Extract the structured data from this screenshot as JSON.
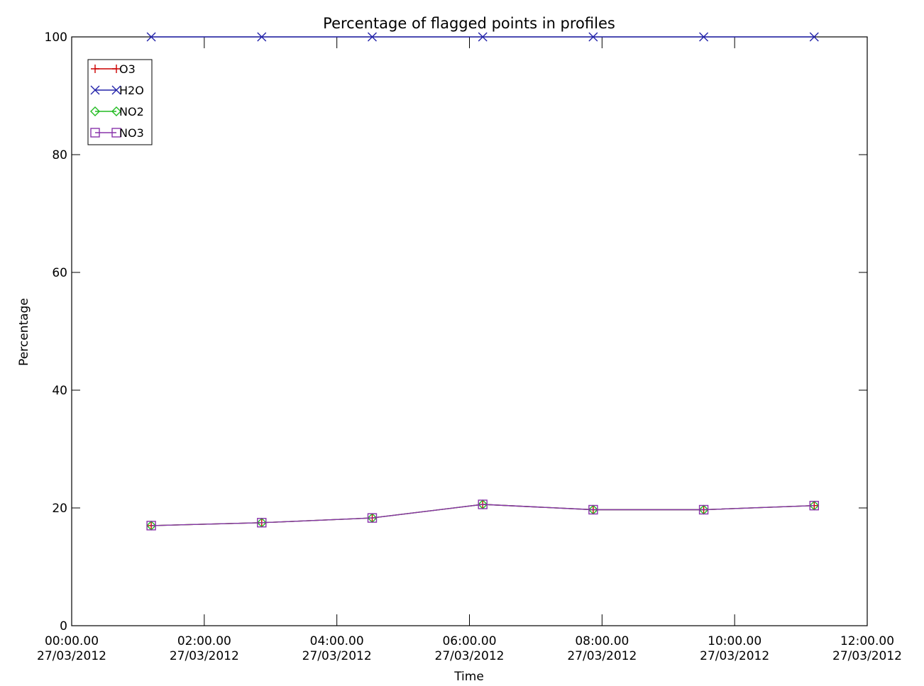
{
  "chart_data": {
    "type": "line",
    "title": "Percentage of flagged points in profiles",
    "xlabel": "Time",
    "ylabel": "Percentage",
    "xlim": [
      "2012-03-27 00:00",
      "2012-03-27 12:00"
    ],
    "ylim": [
      0,
      100
    ],
    "x_tick_labels": [
      {
        "time": "00:00.00",
        "date": "27/03/2012"
      },
      {
        "time": "02:00.00",
        "date": "27/03/2012"
      },
      {
        "time": "04:00.00",
        "date": "27/03/2012"
      },
      {
        "time": "06:00.00",
        "date": "27/03/2012"
      },
      {
        "time": "08:00.00",
        "date": "27/03/2012"
      },
      {
        "time": "10:00.00",
        "date": "27/03/2012"
      },
      {
        "time": "12:00.00",
        "date": "27/03/2012"
      }
    ],
    "y_tick_labels": [
      "0",
      "20",
      "40",
      "60",
      "80",
      "100"
    ],
    "x": [
      "2012-03-27 01:12",
      "2012-03-27 02:52",
      "2012-03-27 04:32",
      "2012-03-27 06:12",
      "2012-03-27 07:52",
      "2012-03-27 09:32",
      "2012-03-27 11:12"
    ],
    "series": [
      {
        "name": "O3",
        "color": "#cc0000",
        "marker": "plus",
        "values": [
          17,
          17.5,
          18.3,
          20.6,
          19.7,
          19.7,
          20.4
        ]
      },
      {
        "name": "H2O",
        "color": "#2222aa",
        "marker": "x",
        "values": [
          100,
          100,
          100,
          100,
          100,
          100,
          100
        ]
      },
      {
        "name": "NO2",
        "color": "#22bb22",
        "marker": "diamond",
        "values": [
          17,
          17.5,
          18.3,
          20.6,
          19.7,
          19.7,
          20.4
        ]
      },
      {
        "name": "NO3",
        "color": "#8833aa",
        "marker": "square",
        "values": [
          17,
          17.5,
          18.3,
          20.6,
          19.7,
          19.7,
          20.4
        ]
      }
    ],
    "grid": false,
    "legend_position": "top-left"
  }
}
